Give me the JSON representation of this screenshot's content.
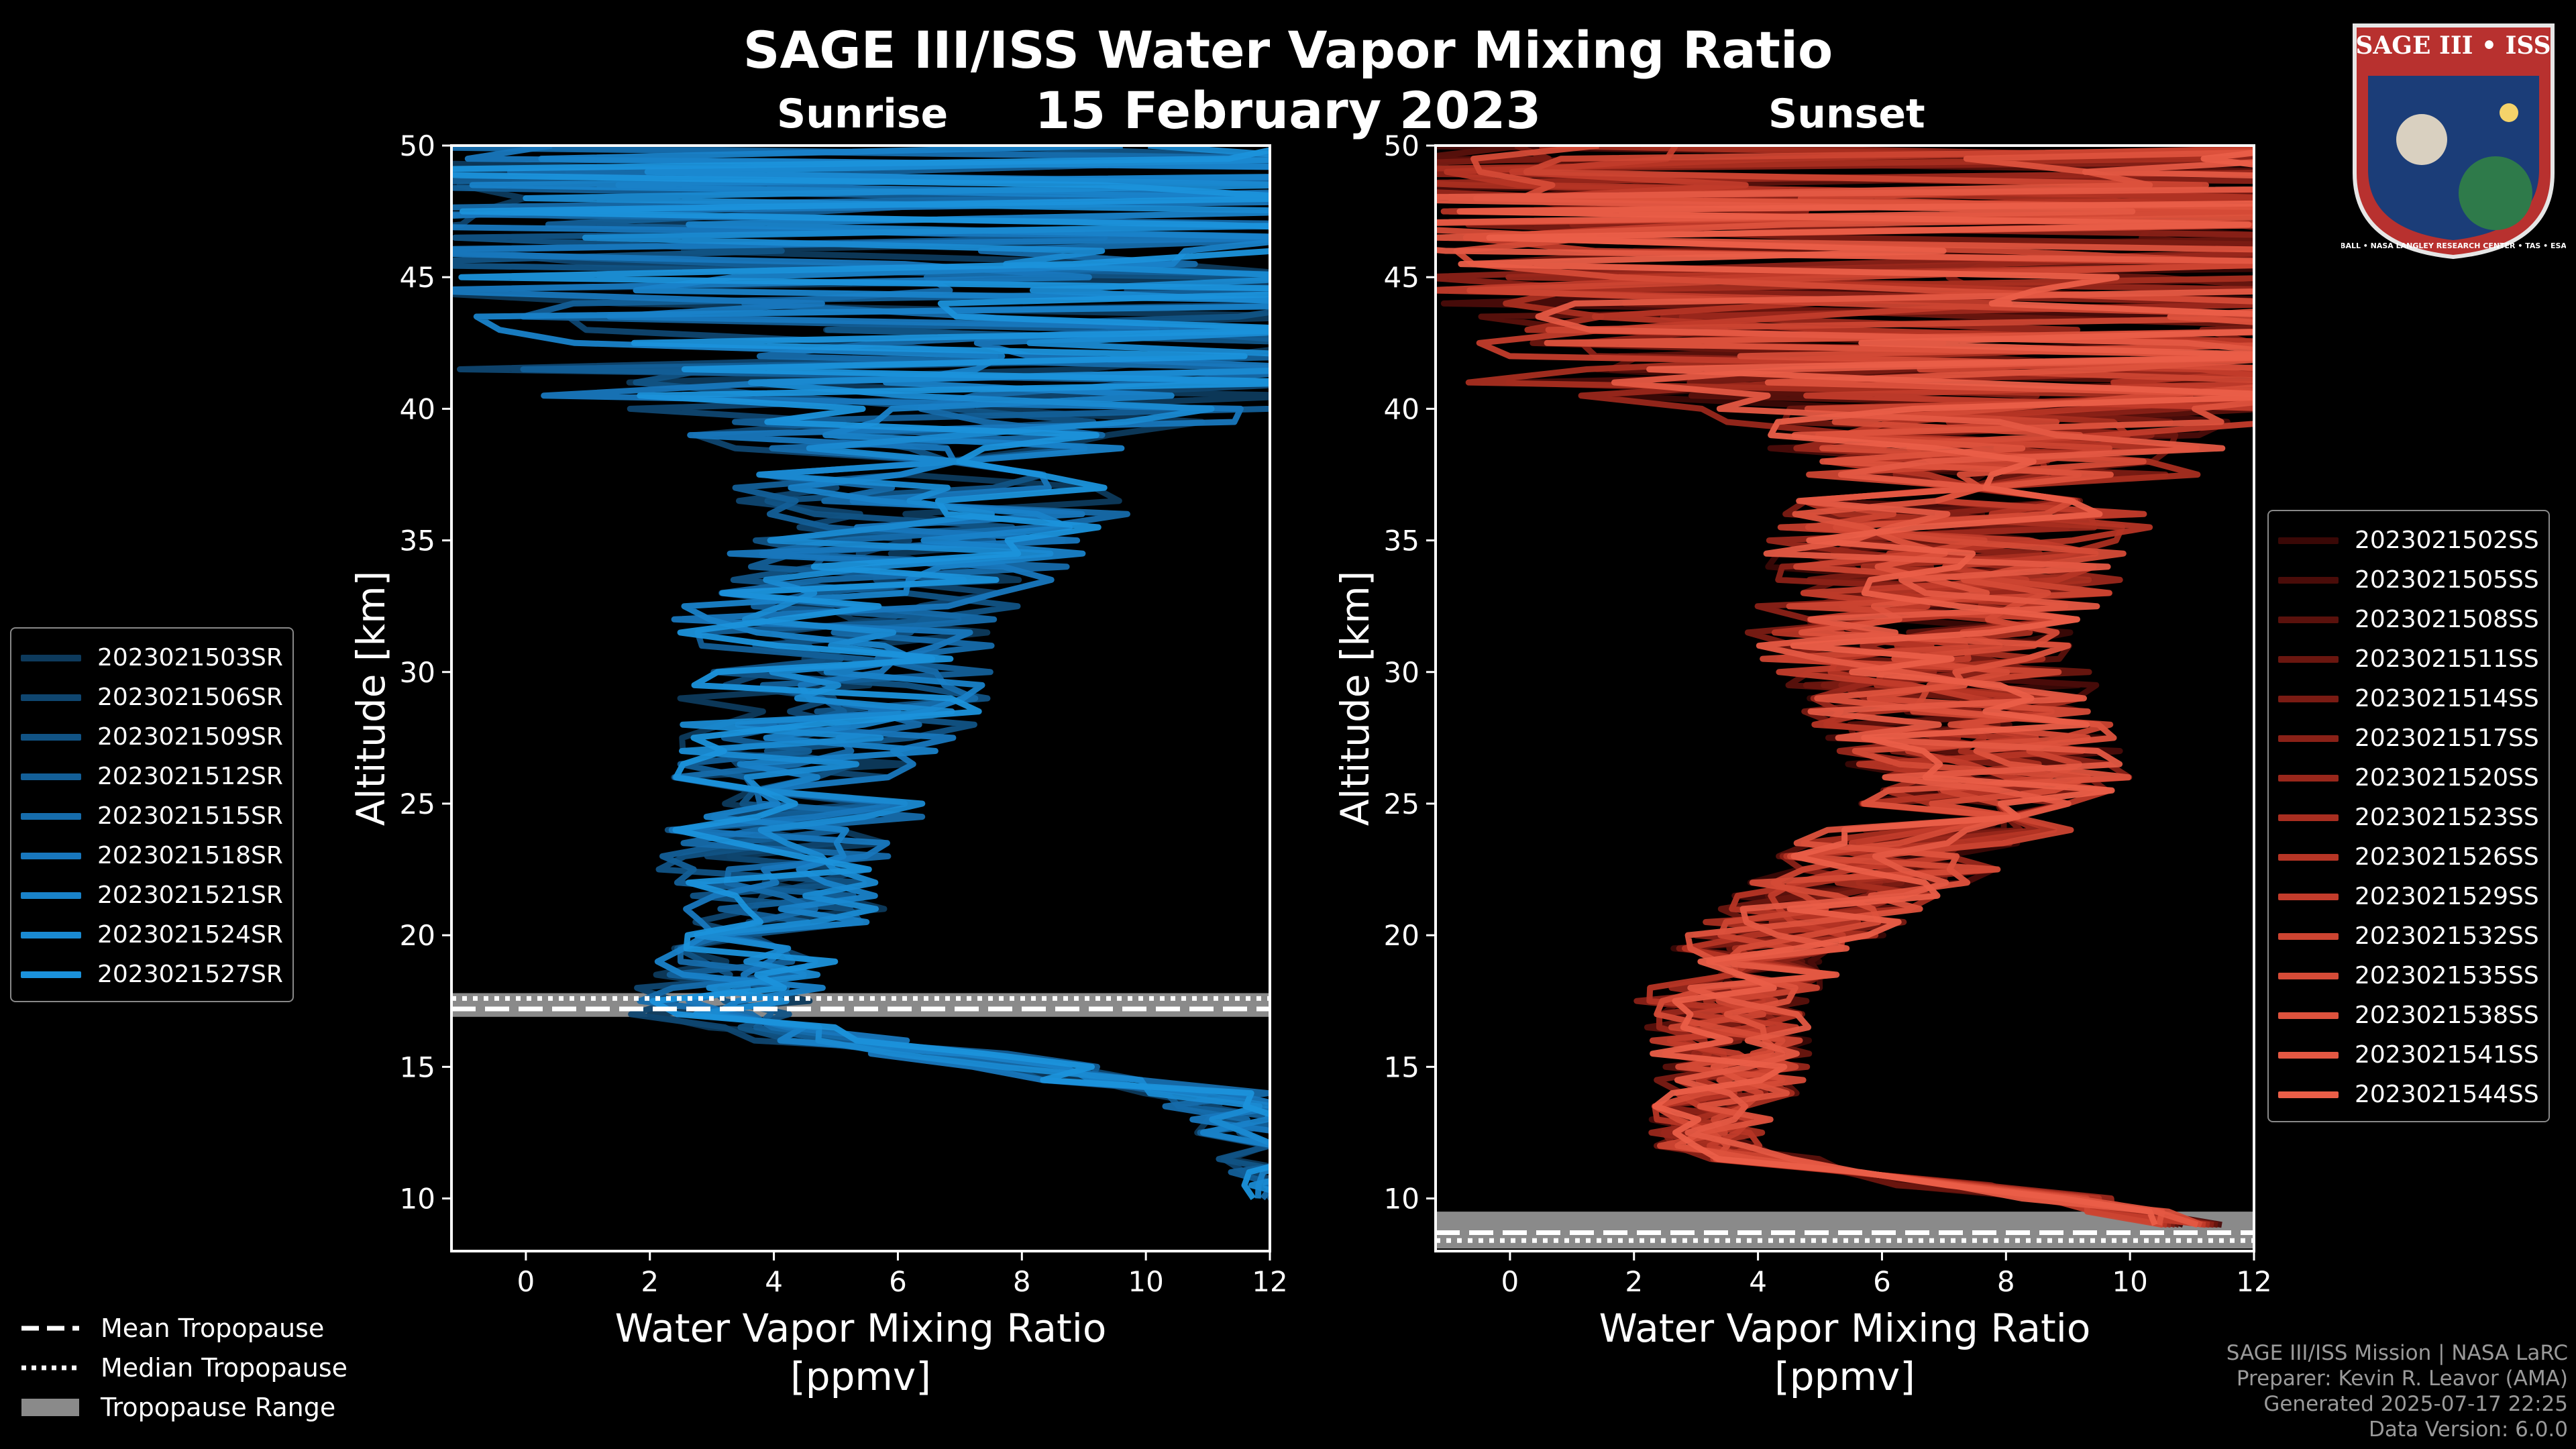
{
  "title": "SAGE III/ISS Water Vapor Mixing Ratio",
  "date": "15 February 2023",
  "panels": {
    "sunrise_title": "Sunrise",
    "sunset_title": "Sunset"
  },
  "logo": {
    "text": "SAGE III • ISS",
    "ring_text": "BALL • NASA LANGLEY RESEARCH CENTER • TAS • ESA",
    "colors": {
      "ring": "#b8312f",
      "inner": "#1b3d78"
    }
  },
  "legend_tropopause": {
    "items": [
      "Mean Tropopause",
      "Median Tropopause",
      "Tropopause Range"
    ]
  },
  "credits": {
    "line1": "SAGE III/ISS Mission | NASA LaRC",
    "line2": "Preparer: Kevin R. Leavor (AMA)",
    "line3": "Generated 2025-07-17 22:25",
    "line4": "Data Version: 6.0.0"
  },
  "colors": {
    "sunrise": "#1a8fd6",
    "sunset": "#ea5a4a",
    "axes": "#ffffff",
    "range": "#8a8a8a"
  },
  "chart_data": [
    {
      "type": "line",
      "panel": "Sunrise",
      "xlabel": "Water Vapor Mixing Ratio",
      "xlabel2": "[ppmv]",
      "ylabel": "Altitude [km]",
      "xlim": [
        -1.2,
        12
      ],
      "ylim": [
        8,
        50
      ],
      "xticks": [
        0,
        2,
        4,
        6,
        8,
        10,
        12
      ],
      "yticks": [
        10,
        15,
        20,
        25,
        30,
        35,
        40,
        45,
        50
      ],
      "legend_location": "left",
      "series_names": [
        "2023021503SR",
        "2023021506SR",
        "2023021509SR",
        "2023021512SR",
        "2023021515SR",
        "2023021518SR",
        "2023021521SR",
        "2023021524SR",
        "2023021527SR"
      ],
      "series_colors": [
        "#0d3a5c",
        "#0f4670",
        "#115385",
        "#135f98",
        "#166cab",
        "#1877bd",
        "#1982c9",
        "#1a8ad2",
        "#1b92db"
      ],
      "mean_profile": {
        "altitude": [
          10,
          12,
          14,
          15,
          16,
          17,
          18,
          19,
          20,
          21,
          22,
          23,
          24,
          25,
          26,
          27,
          28,
          29,
          30,
          31,
          32,
          33,
          34,
          35,
          36,
          37,
          38,
          39,
          40,
          42,
          44,
          46,
          48,
          50
        ],
        "value": [
          12,
          12,
          11,
          8,
          5,
          3,
          3.3,
          3.6,
          3.9,
          4.0,
          4.1,
          4.0,
          4.2,
          4.3,
          4.4,
          4.6,
          4.8,
          5.0,
          5.2,
          5.3,
          5.2,
          5.5,
          5.8,
          6.2,
          6.5,
          6.7,
          6.9,
          7.0,
          7.0,
          7.2,
          7.4,
          7.3,
          7.0,
          6.8
        ]
      },
      "tropopause": {
        "mean": 17.2,
        "median": 17.6,
        "range": [
          16.9,
          17.8
        ]
      }
    },
    {
      "type": "line",
      "panel": "Sunset",
      "xlabel": "Water Vapor Mixing Ratio",
      "xlabel2": "[ppmv]",
      "ylabel": "Altitude [km]",
      "xlim": [
        -1.2,
        12
      ],
      "ylim": [
        8,
        50
      ],
      "xticks": [
        0,
        2,
        4,
        6,
        8,
        10,
        12
      ],
      "yticks": [
        10,
        15,
        20,
        25,
        30,
        35,
        40,
        45,
        50
      ],
      "legend_location": "right",
      "series_names": [
        "2023021502SS",
        "2023021505SS",
        "2023021508SS",
        "2023021511SS",
        "2023021514SS",
        "2023021517SS",
        "2023021520SS",
        "2023021523SS",
        "2023021526SS",
        "2023021529SS",
        "2023021532SS",
        "2023021535SS",
        "2023021538SS",
        "2023021541SS",
        "2023021544SS"
      ],
      "series_colors": [
        "#3a0806",
        "#4a0c09",
        "#5a110c",
        "#6a160f",
        "#7a1b13",
        "#8a2117",
        "#99271b",
        "#a82e20",
        "#b63525",
        "#c23c2b",
        "#cc4431",
        "#d54b37",
        "#dd523d",
        "#e45843",
        "#ea5e48"
      ],
      "mean_profile": {
        "altitude": [
          9,
          10,
          11,
          12,
          13,
          14,
          15,
          16,
          17,
          18,
          19,
          20,
          21,
          22,
          23,
          24,
          25,
          26,
          27,
          28,
          29,
          30,
          31,
          32,
          33,
          34,
          35,
          36,
          37,
          38,
          39,
          40,
          42,
          44,
          46,
          48,
          50
        ],
        "value": [
          11,
          9,
          5,
          3.2,
          3.3,
          3.5,
          3.6,
          3.5,
          3.4,
          3.6,
          4.0,
          4.5,
          5.0,
          5.6,
          6.3,
          7.0,
          7.6,
          7.8,
          7.6,
          7.3,
          7.0,
          6.8,
          6.7,
          6.6,
          6.8,
          7.0,
          7.3,
          7.5,
          7.6,
          7.8,
          8.0,
          8.0,
          8.2,
          8.4,
          8.3,
          8.0,
          7.8
        ]
      },
      "tropopause": {
        "mean": 8.7,
        "median": 8.4,
        "range": [
          8.1,
          9.5
        ]
      }
    }
  ]
}
